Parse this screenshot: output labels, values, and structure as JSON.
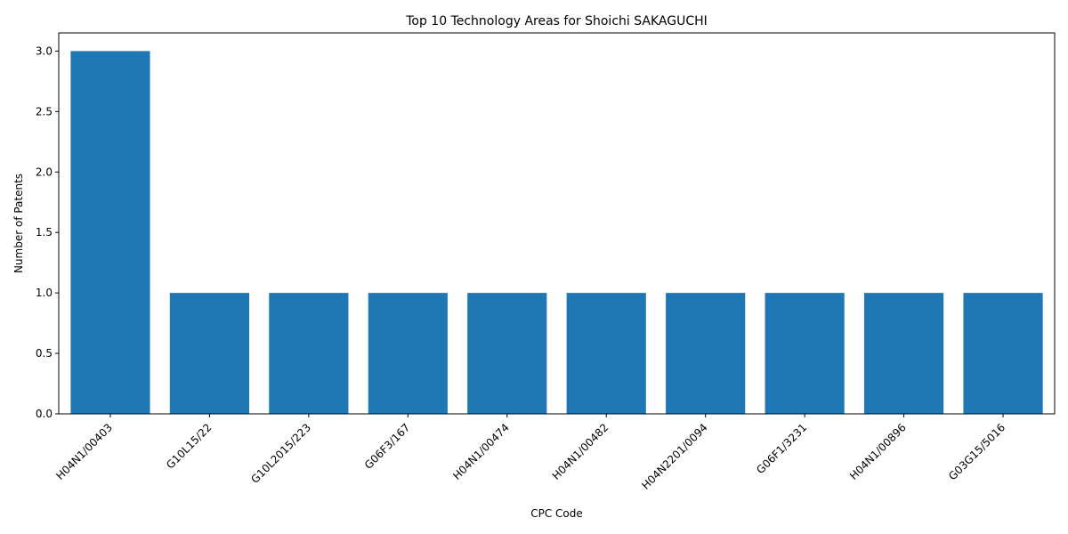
{
  "chart_data": {
    "type": "bar",
    "title": "Top 10 Technology Areas for Shoichi SAKAGUCHI",
    "xlabel": "CPC Code",
    "ylabel": "Number of Patents",
    "categories": [
      "H04N1/00403",
      "G10L15/22",
      "G10L2015/223",
      "G06F3/167",
      "H04N1/00474",
      "H04N1/00482",
      "H04N2201/0094",
      "G06F1/3231",
      "H04N1/00896",
      "G03G15/5016"
    ],
    "values": [
      3,
      1,
      1,
      1,
      1,
      1,
      1,
      1,
      1,
      1
    ],
    "ylim": [
      0,
      3.15
    ],
    "yticks": [
      0.0,
      0.5,
      1.0,
      1.5,
      2.0,
      2.5,
      3.0
    ],
    "ytick_labels": [
      "0.0",
      "0.5",
      "1.0",
      "1.5",
      "2.0",
      "2.5",
      "3.0"
    ],
    "bar_color": "#1f77b4",
    "grid": false,
    "legend": "none"
  }
}
